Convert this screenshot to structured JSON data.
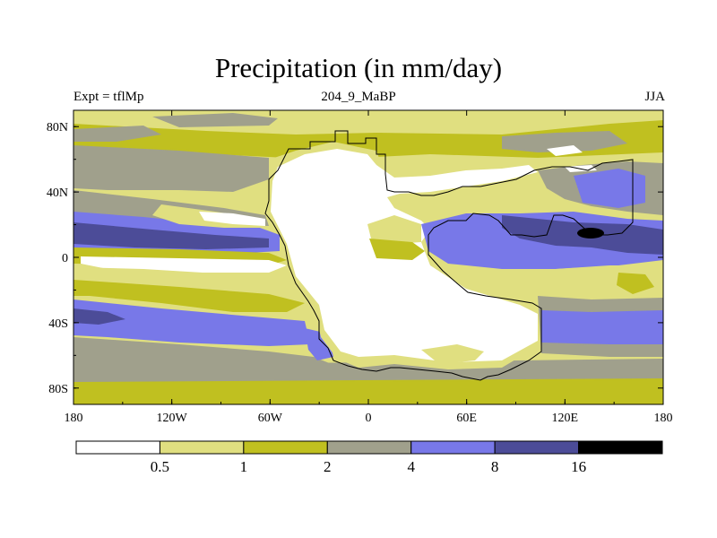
{
  "chart_data": {
    "type": "heatmap",
    "title": "Precipitation (in mm/day)",
    "subtitle_left": "Expt = tflMp",
    "subtitle_center": "204_9_MaBP",
    "subtitle_right": "JJA",
    "x_axis": {
      "range": [
        -180,
        180
      ],
      "ticks": [
        {
          "value": -180,
          "label": "180"
        },
        {
          "value": -120,
          "label": "120W"
        },
        {
          "value": -60,
          "label": "60W"
        },
        {
          "value": 0,
          "label": "0"
        },
        {
          "value": 60,
          "label": "60E"
        },
        {
          "value": 120,
          "label": "120E"
        },
        {
          "value": 180,
          "label": "180"
        }
      ]
    },
    "y_axis": {
      "range": [
        -90,
        90
      ],
      "ticks": [
        {
          "value": 80,
          "label": "80N"
        },
        {
          "value": 40,
          "label": "40N"
        },
        {
          "value": 0,
          "label": "0"
        },
        {
          "value": -40,
          "label": "40S"
        },
        {
          "value": -80,
          "label": "80S"
        }
      ]
    },
    "levels": [
      {
        "value": 0.5,
        "label": "0.5"
      },
      {
        "value": 1,
        "label": "1"
      },
      {
        "value": 2,
        "label": "2"
      },
      {
        "value": 4,
        "label": "4"
      },
      {
        "value": 8,
        "label": "8"
      },
      {
        "value": 16,
        "label": "16"
      }
    ],
    "colors": [
      "#ffffff",
      "#e0df80",
      "#c0c020",
      "#a0a08c",
      "#7878e8",
      "#4c4c98",
      "#000000"
    ],
    "legend_position": "bottom"
  }
}
